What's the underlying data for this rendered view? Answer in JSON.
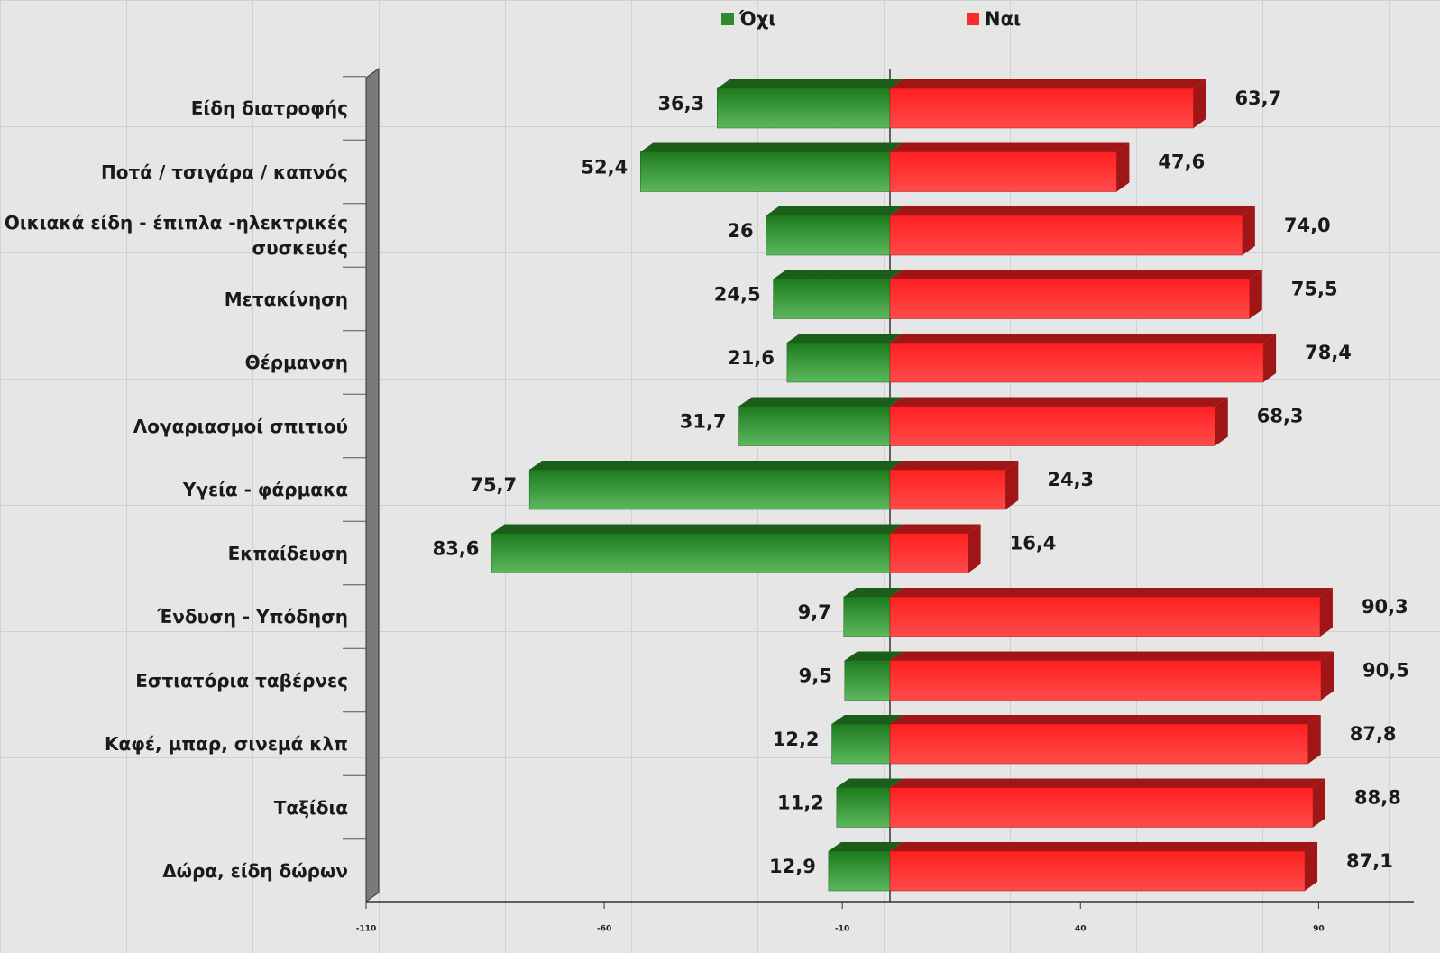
{
  "chart_data": {
    "type": "diverging-bar",
    "categories": [
      "Είδη διατροφής",
      "Ποτά / τσιγάρα / καπνός",
      "Οικιακά είδη - έπιπλα -ηλεκτρικές συσκευές",
      "Μετακίνηση",
      "Θέρμανση",
      "Λογαριασμοί σπιτιού",
      "Υγεία - φάρμακα",
      "Εκπαίδευση",
      "Ένδυση - Υπόδηση",
      "Εστιατόρια ταβέρνες",
      "Καφέ, μπαρ, σινεμά κλπ",
      "Ταξίδια",
      "Δώρα, είδη δώρων"
    ],
    "series": [
      {
        "name": "Όχι",
        "color": "#2e8b2e",
        "values": [
          -36.3,
          -52.4,
          -26,
          -24.5,
          -21.6,
          -31.7,
          -75.7,
          -83.6,
          -9.7,
          -9.5,
          -12.2,
          -11.2,
          -12.9
        ],
        "value_labels": [
          "36,3",
          "52,4",
          "26",
          "24,5",
          "21,6",
          "31,7",
          "75,7",
          "83,6",
          "9,7",
          "9,5",
          "12,2",
          "11,2",
          "12,9"
        ]
      },
      {
        "name": "Ναι",
        "color": "#ff2a2a",
        "values": [
          63.7,
          47.6,
          74.0,
          75.5,
          78.4,
          68.3,
          24.3,
          16.4,
          90.3,
          90.5,
          87.8,
          88.8,
          87.1
        ],
        "value_labels": [
          "63,7",
          "47,6",
          "74,0",
          "75,5",
          "78,4",
          "68,3",
          "24,3",
          "16,4",
          "90,3",
          "90,5",
          "87,8",
          "88,8",
          "87,1"
        ]
      }
    ],
    "xlim": [
      -110,
      110
    ],
    "xticks": [
      -110,
      -60,
      -10,
      40,
      90
    ]
  }
}
